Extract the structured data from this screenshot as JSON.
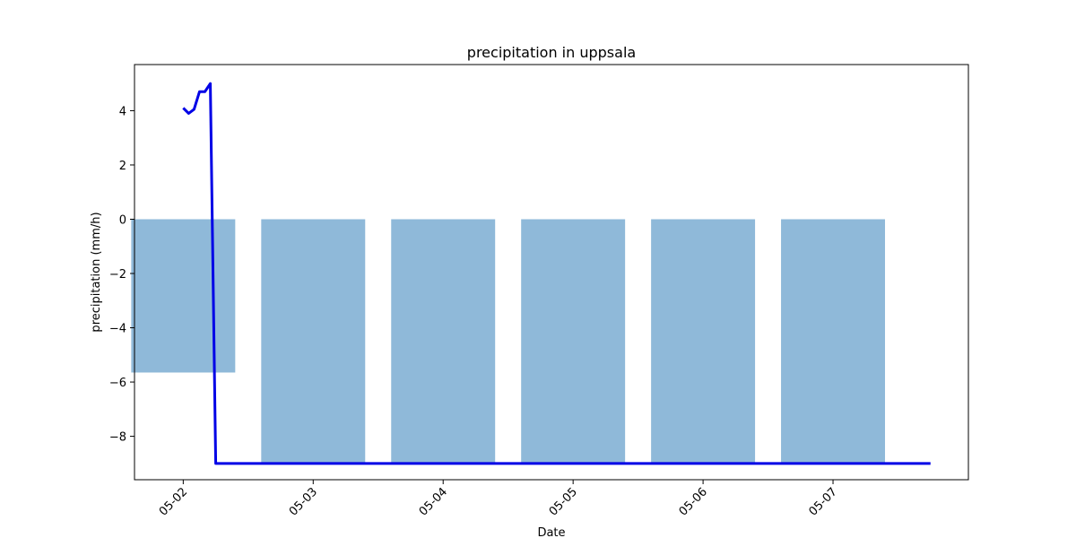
{
  "chart_data": {
    "type": "bar",
    "title": "precipitation in uppsala",
    "xlabel": "Date",
    "ylabel": "precipitation (mm/h)",
    "categories": [
      "05-02",
      "05-03",
      "05-04",
      "05-05",
      "05-06",
      "05-07"
    ],
    "bars": {
      "color": "#8fb9d9",
      "values": [
        -5.65,
        -9.0,
        -9.0,
        -9.0,
        -9.0,
        -9.0
      ],
      "width_days": 0.8
    },
    "line": {
      "color": "#0000e6",
      "points": [
        {
          "x": "05-02 00:00",
          "y": 4.1
        },
        {
          "x": "05-02 01:00",
          "y": 3.9
        },
        {
          "x": "05-02 02:00",
          "y": 4.05
        },
        {
          "x": "05-02 03:00",
          "y": 4.7
        },
        {
          "x": "05-02 04:00",
          "y": 4.7
        },
        {
          "x": "05-02 05:00",
          "y": 5.0
        },
        {
          "x": "05-02 06:00",
          "y": -9.0
        },
        {
          "x": "05-07 18:00",
          "y": -9.0
        }
      ]
    },
    "xlim": [
      "05-01 15:00",
      "05-08 01:00"
    ],
    "ylim": [
      -9.6,
      5.7
    ],
    "yticks": [
      4,
      2,
      0,
      -2,
      -4,
      -6,
      -8
    ],
    "ytick_labels": [
      "4",
      "2",
      "0",
      "−2",
      "−4",
      "−6",
      "−8"
    ],
    "grid": false,
    "legend": "none"
  }
}
